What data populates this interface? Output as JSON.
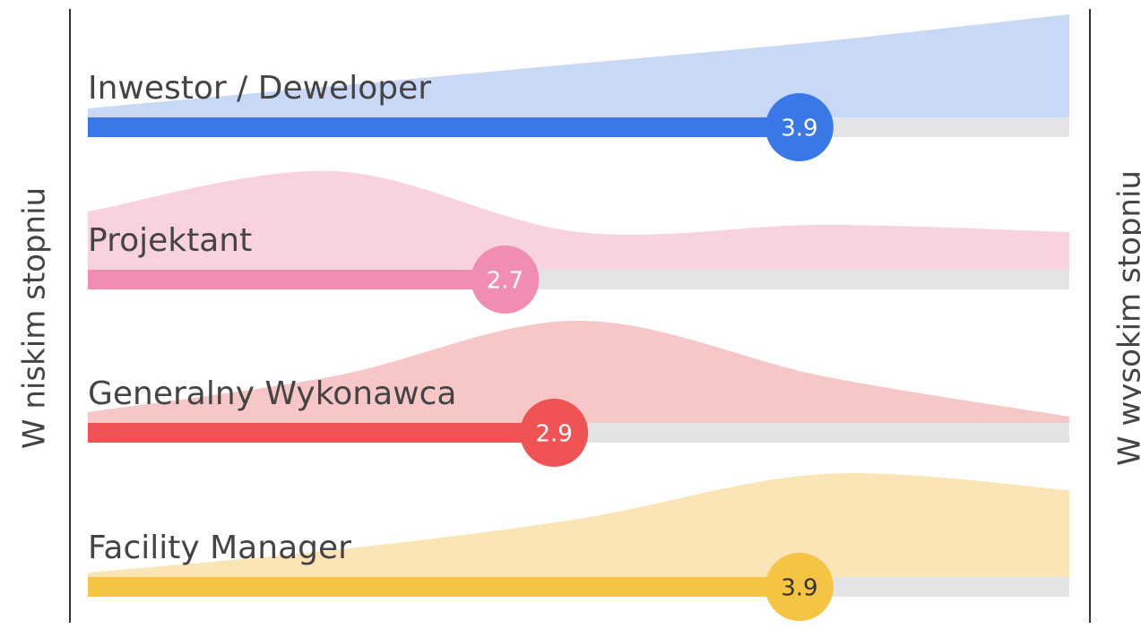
{
  "chart_data": {
    "type": "bar",
    "left_label": "W niskim stopniu",
    "right_label": "W wysokim stopniu",
    "categories": [
      "Inwestor / Deweloper",
      "Projektant",
      "Generalny Wykonawca",
      "Facility Manager"
    ],
    "values": [
      3.9,
      2.7,
      2.9,
      3.9
    ],
    "colors": [
      "#3a78e8",
      "#f08db3",
      "#f05353",
      "#f5c443"
    ],
    "distribution_colors": [
      "#c8d8f6",
      "#f9d2df",
      "#f7c6c6",
      "#fbe5b6"
    ],
    "xlim": [
      1,
      5
    ],
    "distribution_x": [
      1,
      2,
      3,
      4,
      5
    ],
    "distributions": [
      [
        10,
        35,
        60,
        85,
        115
      ],
      [
        65,
        110,
        42,
        50,
        42
      ],
      [
        12,
        52,
        114,
        52,
        7
      ],
      [
        5,
        30,
        65,
        115,
        97
      ]
    ]
  }
}
